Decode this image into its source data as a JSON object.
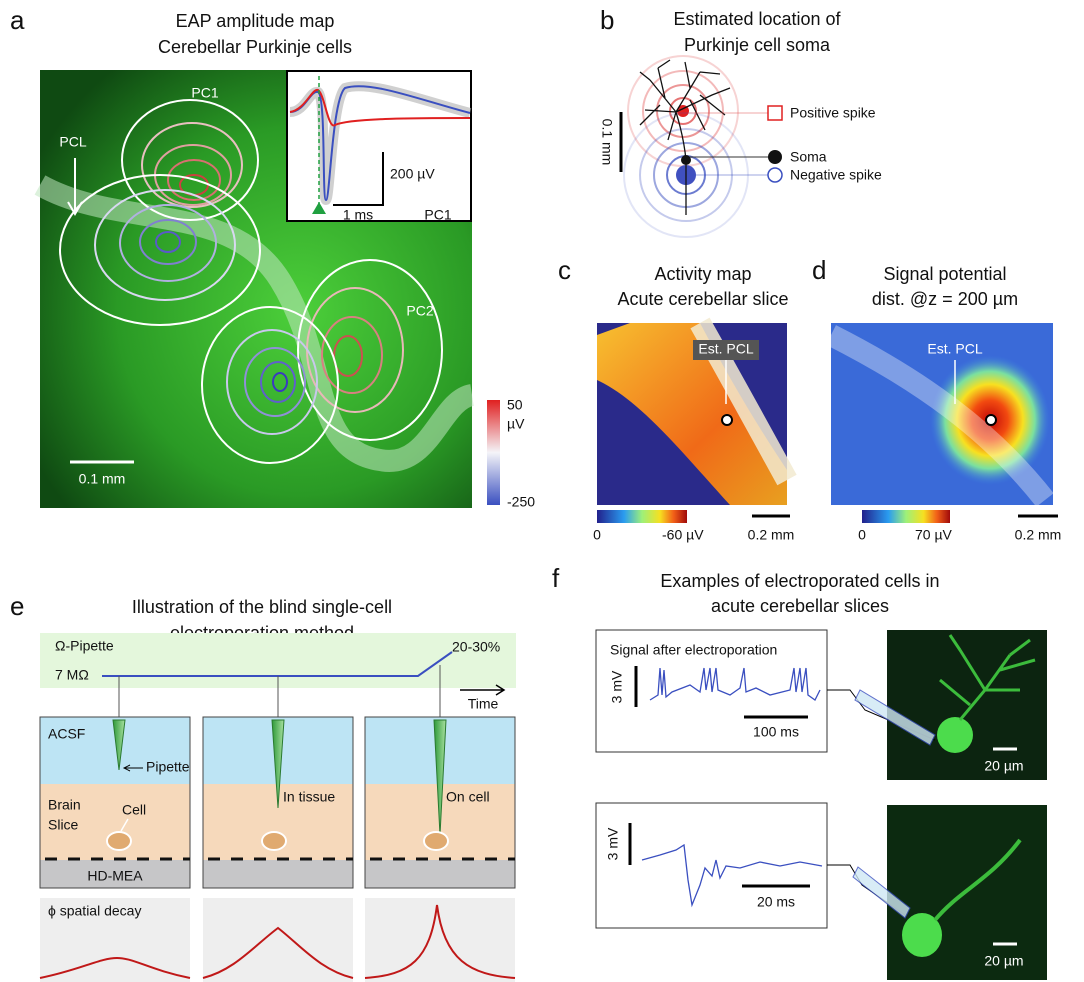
{
  "panel_a": {
    "label": "a",
    "title": "EAP amplitude map",
    "subtitle": "Cerebellar Purkinje cells",
    "annotations": [
      "PC1",
      "PCL",
      "PC2"
    ],
    "inset": {
      "amplitude_scale": "200 µV",
      "time_scale": "1 ms",
      "cell": "PC1"
    },
    "scale_bar": "0.1 mm",
    "colorbar": {
      "max": "50",
      "unit": "µV",
      "min": "-250"
    }
  },
  "panel_b": {
    "label": "b",
    "title": "Estimated location of",
    "subtitle": "Purkinje cell soma",
    "scale_bar": "0.1 mm",
    "legend": [
      "Positive spike",
      "Soma",
      "Negative spike"
    ]
  },
  "panel_c": {
    "label": "c",
    "title": "Activity map",
    "subtitle": "Acute cerebellar slice",
    "annotation": "Est. PCL",
    "colorbar": {
      "min": "0",
      "max": "-60 µV"
    },
    "scale_bar": "0.2 mm"
  },
  "panel_d": {
    "label": "d",
    "title": "Signal potential",
    "subtitle": "dist. @z = 200 µm",
    "annotation": "Est. PCL",
    "colorbar": {
      "min": "0",
      "max": "70 µV"
    },
    "scale_bar": "0.2 mm"
  },
  "panel_e": {
    "label": "e",
    "title": "Illustration of the blind single-cell",
    "subtitle": "electroporation method",
    "timeline": {
      "name": "Ω-Pipette",
      "start": "7 MΩ",
      "end": "20-30%",
      "axis": "Time"
    },
    "layers": [
      "ACSF",
      "Brain",
      "Slice",
      "HD-MEA"
    ],
    "labels": [
      "Pipette",
      "Cell",
      "In tissue",
      "On cell"
    ],
    "decay": "ϕ spatial decay"
  },
  "panel_f": {
    "label": "f",
    "title": "Examples of electroporated cells in",
    "subtitle": "acute cerebellar slices",
    "examples": [
      {
        "caption": "Signal after electroporation",
        "voltage_scale": "3 mV",
        "time_scale": "100 ms",
        "image_scale": "20 µm"
      },
      {
        "voltage_scale": "3 mV",
        "time_scale": "20 ms",
        "image_scale": "20 µm"
      }
    ]
  }
}
